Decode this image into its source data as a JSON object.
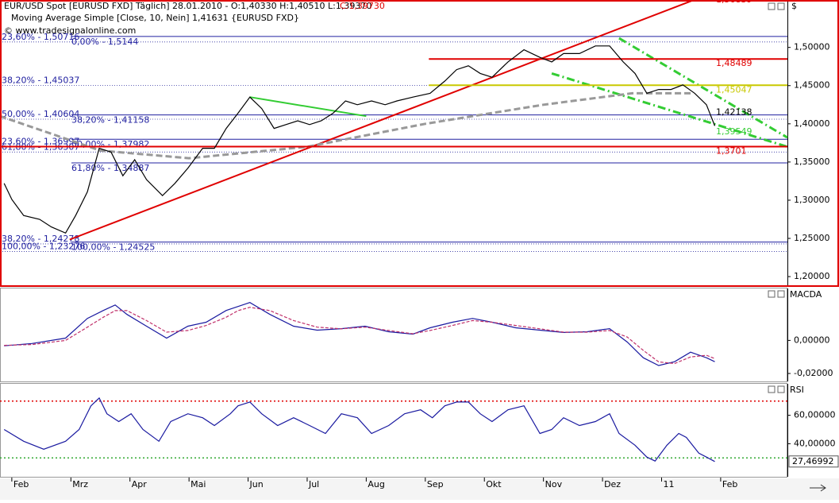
{
  "chart_data": [
    {
      "type": "line",
      "title": "EUR/USD Spot [EURUSD FXD]  Täglich] 28.01.2010 - O:1,40330 H:1,40510 L:1,39370",
      "title_close": "C:1,39730",
      "subtitle": "Moving Average Simple [Close, 10, Nein] 1,41631 {EURUSD FXD}",
      "source": "© www.tradesignalonline.com",
      "axis_label": "$",
      "xlim": [
        -0.2,
        13.13
      ],
      "ylim": [
        1.1876,
        1.56
      ],
      "yticks": [
        {
          "value": 1.2,
          "label": "1,20000"
        },
        {
          "value": 1.25,
          "label": "1,25000"
        },
        {
          "value": 1.3,
          "label": "1,30000"
        },
        {
          "value": 1.35,
          "label": "1,35000"
        },
        {
          "value": 1.4,
          "label": "1,40000"
        },
        {
          "value": 1.45,
          "label": "1,45000"
        },
        {
          "value": 1.5,
          "label": "1,50000"
        }
      ],
      "x": [
        -0.13,
        0,
        0.2,
        0.47,
        0.67,
        0.91,
        1.08,
        1.28,
        1.48,
        1.68,
        1.88,
        2.08,
        2.28,
        2.55,
        2.76,
        2.98,
        3.23,
        3.43,
        3.63,
        3.83,
        4.03,
        4.23,
        4.44,
        4.64,
        4.84,
        5.04,
        5.24,
        5.44,
        5.65,
        5.85,
        6.09,
        6.32,
        6.52,
        6.79,
        7.08,
        7.33,
        7.53,
        7.73,
        7.93,
        8.13,
        8.4,
        8.67,
        8.94,
        9.14,
        9.34,
        9.61,
        9.88,
        10.12,
        10.35,
        10.55,
        10.75,
        10.95,
        11.16,
        11.36,
        11.56,
        11.76,
        11.9
      ],
      "series": [
        {
          "name": "EUR/USD",
          "color": "#000000",
          "values": [
            1.322,
            1.301,
            1.28,
            1.275,
            1.265,
            1.257,
            1.28,
            1.311,
            1.368,
            1.363,
            1.332,
            1.353,
            1.327,
            1.306,
            1.322,
            1.342,
            1.368,
            1.368,
            1.394,
            1.414,
            1.435,
            1.42,
            1.394,
            1.399,
            1.404,
            1.399,
            1.404,
            1.414,
            1.43,
            1.425,
            1.43,
            1.425,
            1.43,
            1.435,
            1.44,
            1.456,
            1.471,
            1.476,
            1.466,
            1.461,
            1.481,
            1.497,
            1.487,
            1.481,
            1.492,
            1.492,
            1.502,
            1.502,
            1.481,
            1.466,
            1.44,
            1.445,
            1.445,
            1.451,
            1.44,
            1.425,
            1.3973
          ]
        }
      ],
      "levels_mid": [
        {
          "label": "0,00% - 1,5144",
          "value": 1.5144
        },
        {
          "label": "38,20% - 1,41158",
          "value": 1.41158
        },
        {
          "label": "50,00% - 1,37982",
          "value": 1.37982
        },
        {
          "label": "61,80% - 1,34887",
          "value": 1.34887
        },
        {
          "label": "100,00% - 1,24525",
          "value": 1.24525
        }
      ],
      "levels_left": [
        {
          "label": "23,60% - 1,50716",
          "value": 1.50716
        },
        {
          "label": "38,20% - 1,45037",
          "value": 1.45037
        },
        {
          "label": "50,00% - 1,40604",
          "value": 1.40604
        },
        {
          "label": "23,60% - 1,36997",
          "value": 1.36997
        },
        {
          "label": "61,80% - 1,36307",
          "value": 1.36307
        },
        {
          "label": "38,20% - 1,24278",
          "value": 1.24278
        },
        {
          "label": "100,00% - 1,23276",
          "value": 1.23276
        }
      ],
      "price_labels": [
        {
          "label": "1,56839",
          "value": 1.56839,
          "color": "#e00000"
        },
        {
          "label": "1,48489",
          "value": 1.48489,
          "color": "#e00000",
          "line_from": 7.06
        },
        {
          "label": "1,45047",
          "value": 1.45047,
          "color": "#c8c800",
          "line_from": 7.06
        },
        {
          "label": "1,42138",
          "value": 1.42138,
          "color": "#000000"
        },
        {
          "label": "1,39549",
          "value": 1.39549,
          "color": "#33cc33"
        },
        {
          "label": "1,3701",
          "value": 1.3701,
          "color": "#e00000",
          "line_from": -0.2
        }
      ],
      "trendlines": [
        {
          "color": "#e00000",
          "style": "solid",
          "x": [
            0.98,
            11.76
          ],
          "values": [
            1.2485,
            1.5684
          ]
        },
        {
          "color": "#33cc33",
          "style": "dashdot",
          "x": [
            9.14,
            13.13
          ],
          "values": [
            1.466,
            1.37
          ]
        },
        {
          "color": "#33cc33",
          "style": "dashdot",
          "x": [
            10.28,
            13.13
          ],
          "values": [
            1.512,
            1.382
          ]
        },
        {
          "color": "#33cc33",
          "style": "solid",
          "x": [
            4.03,
            6.0
          ],
          "values": [
            1.435,
            1.41
          ]
        },
        {
          "color": "#999999",
          "style": "dashed",
          "x": [
            -0.2,
            1.5,
            3,
            5,
            7,
            9,
            10.5,
            11.5
          ],
          "values": [
            1.41,
            1.365,
            1.355,
            1.37,
            1.4,
            1.425,
            1.44,
            1.44
          ]
        }
      ]
    },
    {
      "type": "line",
      "axis_label": "MACDA",
      "xlim": [
        -0.2,
        13.13
      ],
      "ylim": [
        -0.0248,
        0.0314
      ],
      "yticks": [
        {
          "value": -0.02,
          "label": "-0,02000"
        },
        {
          "value": 0,
          "label": "0,00000"
        }
      ],
      "x": [
        -0.13,
        0.34,
        0.91,
        1.28,
        1.55,
        1.75,
        1.95,
        2.28,
        2.62,
        2.98,
        3.29,
        3.63,
        3.83,
        4.03,
        4.37,
        4.77,
        5.17,
        5.58,
        5.98,
        6.38,
        6.79,
        7.08,
        7.46,
        7.8,
        8.13,
        8.53,
        8.94,
        9.34,
        9.74,
        10.12,
        10.42,
        10.69,
        10.95,
        11.22,
        11.49,
        11.76,
        11.9
      ],
      "series": [
        {
          "name": "MACD",
          "color": "#1a1aa0",
          "values": [
            -0.0033,
            -0.0019,
            0.0014,
            0.0133,
            0.0181,
            0.0214,
            0.0157,
            0.0086,
            0.0014,
            0.0086,
            0.011,
            0.0181,
            0.0205,
            0.0229,
            0.0157,
            0.0086,
            0.0062,
            0.0071,
            0.0086,
            0.0052,
            0.0038,
            0.0076,
            0.011,
            0.0133,
            0.011,
            0.0076,
            0.0062,
            0.0048,
            0.0052,
            0.0071,
            -0.001,
            -0.0105,
            -0.0152,
            -0.0129,
            -0.0071,
            -0.0105,
            -0.0129
          ]
        },
        {
          "name": "Signal",
          "color": "#c0306a",
          "dashed": true,
          "values": [
            -0.003,
            -0.0025,
            0,
            0.008,
            0.014,
            0.018,
            0.018,
            0.012,
            0.005,
            0.006,
            0.009,
            0.014,
            0.018,
            0.02,
            0.018,
            0.012,
            0.008,
            0.007,
            0.008,
            0.006,
            0.004,
            0.006,
            0.009,
            0.012,
            0.011,
            0.009,
            0.007,
            0.005,
            0.005,
            0.006,
            0.002,
            -0.006,
            -0.013,
            -0.014,
            -0.01,
            -0.009,
            -0.011
          ]
        }
      ]
    },
    {
      "type": "line",
      "axis_label": "RSI",
      "xlim": [
        -0.2,
        13.13
      ],
      "ylim": [
        16.7,
        82.2
      ],
      "yticks": [
        {
          "value": 40,
          "label": "40,00000"
        },
        {
          "value": 60,
          "label": "60,00000"
        }
      ],
      "xticks": [
        {
          "value": 0,
          "label": "Feb"
        },
        {
          "value": 1,
          "label": "Mrz"
        },
        {
          "value": 2,
          "label": "Apr"
        },
        {
          "value": 3,
          "label": "Mai"
        },
        {
          "value": 4,
          "label": "Jun"
        },
        {
          "value": 5,
          "label": "Jul"
        },
        {
          "value": 6,
          "label": "Aug"
        },
        {
          "value": 7,
          "label": "Sep"
        },
        {
          "value": 8,
          "label": "Okt"
        },
        {
          "value": 9,
          "label": "Nov"
        },
        {
          "value": 10,
          "label": "Dez"
        },
        11,
        {
          "value": 12,
          "label": "Feb"
        }
      ],
      "bounds": [
        {
          "value": 70,
          "color": "#e00000"
        },
        {
          "value": 30,
          "color": "#33aa33"
        }
      ],
      "x": [
        -0.13,
        0.2,
        0.54,
        0.91,
        1.14,
        1.34,
        1.48,
        1.61,
        1.81,
        2.02,
        2.22,
        2.49,
        2.69,
        2.98,
        3.23,
        3.43,
        3.7,
        3.83,
        4.03,
        4.23,
        4.5,
        4.77,
        5.04,
        5.31,
        5.58,
        5.85,
        6.09,
        6.38,
        6.65,
        6.92,
        7.12,
        7.33,
        7.53,
        7.73,
        7.93,
        8.13,
        8.4,
        8.67,
        8.94,
        9.14,
        9.34,
        9.61,
        9.88,
        10.12,
        10.28,
        10.55,
        10.75,
        10.89,
        11.09,
        11.29,
        11.42,
        11.63,
        11.76,
        11.9
      ],
      "series": [
        {
          "name": "RSI",
          "color": "#1a1aa0",
          "values": [
            50,
            41.7,
            36.1,
            41.7,
            50,
            66.7,
            72.2,
            61.1,
            55.6,
            61.1,
            50,
            41.7,
            55.6,
            61.1,
            58.3,
            52.8,
            61.1,
            66.7,
            69.4,
            61.1,
            52.8,
            58.3,
            52.8,
            47.2,
            61.1,
            58.3,
            47.2,
            52.8,
            61.1,
            63.9,
            58.3,
            66.7,
            69.4,
            69.4,
            61.1,
            55.6,
            63.9,
            66.7,
            47.2,
            50,
            58.3,
            52.8,
            55.6,
            61.1,
            47.2,
            38.9,
            30.6,
            27.8,
            38.9,
            47.2,
            44.4,
            33.3,
            30.6,
            27.46992
          ]
        }
      ],
      "current_value": {
        "value": 27.46992,
        "label": "27,46992"
      }
    }
  ]
}
